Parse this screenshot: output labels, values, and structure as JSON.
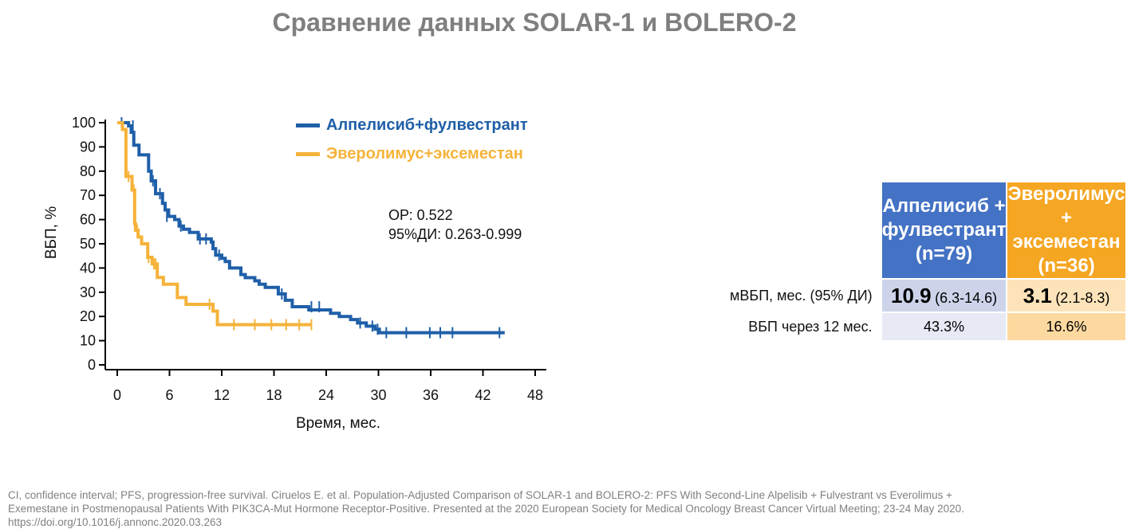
{
  "title": "Сравнение данных SOLAR-1 и BOLERO-2",
  "chart_data": {
    "type": "line",
    "xlabel": "Время, мес.",
    "ylabel": "ВБП, %",
    "xlim": [
      0,
      48
    ],
    "ylim": [
      0,
      100
    ],
    "xticks": [
      0,
      6,
      12,
      18,
      24,
      30,
      36,
      42,
      48
    ],
    "yticks": [
      0,
      10,
      20,
      30,
      40,
      50,
      60,
      70,
      80,
      90,
      100
    ],
    "grid": false,
    "legend_position": "top-right",
    "series": [
      {
        "name": "Алпелисиб+фулвестрант",
        "color": "#1f5fa8",
        "x": [
          0,
          1,
          1.3,
          1.6,
          1.9,
          2.5,
          3.6,
          3.9,
          4.4,
          5.2,
          5.5,
          5.9,
          6.6,
          7.1,
          7.6,
          8.3,
          9.3,
          10.8,
          11,
          11.3,
          12,
          12.4,
          12.9,
          14.2,
          14.7,
          15.8,
          16.3,
          17,
          18.5,
          19.3,
          20.1,
          22,
          24.5,
          25.5,
          26.8,
          27.6,
          28.6,
          29.6,
          30.1,
          30.6,
          44.5
        ],
        "y": [
          100,
          100,
          98.7,
          96,
          90.7,
          86.7,
          80,
          76,
          70.7,
          66.7,
          64,
          61.3,
          60,
          57.3,
          56,
          54.7,
          52,
          50.7,
          48,
          45.3,
          44,
          42.7,
          40,
          37.3,
          36,
          34.7,
          33.3,
          32,
          29.3,
          26.7,
          24,
          22.7,
          21.3,
          20,
          18.7,
          17.3,
          16,
          14.7,
          13.3,
          13.3,
          13.3
        ],
        "censor_x": [
          0.5,
          1.8,
          4.1,
          4.9,
          5.7,
          7.3,
          9.5,
          10.2,
          11.7,
          18.9,
          22.3,
          23.2,
          27.9,
          29.3,
          29.9,
          30.9,
          33.2,
          35.9,
          37.1,
          38.5,
          43.9
        ],
        "censor_y": [
          100,
          98.7,
          76,
          70.7,
          61.3,
          57.3,
          52,
          52,
          45.3,
          29.3,
          24,
          24,
          17.3,
          16,
          14.7,
          13.3,
          13.3,
          13.3,
          13.3,
          13.3,
          13.3
        ]
      },
      {
        "name": "Эверолимус+эксеместан",
        "color": "#f5b33a",
        "x": [
          0,
          0.6,
          1,
          1.7,
          2,
          2.1,
          2.4,
          2.8,
          3.5,
          4,
          4.6,
          5.3,
          6.9,
          7.9,
          11,
          11.5,
          22.3
        ],
        "y": [
          100,
          97.2,
          77.8,
          72.2,
          58.3,
          55.6,
          52.8,
          50,
          44.4,
          41.7,
          36.1,
          33.3,
          27.8,
          25,
          22.2,
          16.6,
          16.6
        ],
        "censor_x": [
          1.3,
          1.9,
          2.3,
          3.6,
          4.2,
          4.4,
          10.6,
          13.4,
          15.8,
          17.7,
          19.4,
          20.9,
          22.3
        ],
        "censor_y": [
          77.8,
          72.2,
          55.6,
          44.4,
          41.7,
          41.7,
          25,
          16.6,
          16.6,
          16.6,
          16.6,
          16.6,
          16.6
        ]
      }
    ],
    "annotations": {
      "hr_label": "ОР: 0.522",
      "ci_label": "95%ДИ: 0.263-0.999"
    }
  },
  "table": {
    "col1_header": [
      "Алпелисиб +",
      "фулвестрант",
      "(n=79)"
    ],
    "col2_header": [
      "Эверолимус +",
      "эксеместан",
      "(n=36)"
    ],
    "rows": [
      {
        "label": "мВБП, мес. (95% ДИ)",
        "v1_main": "10.9",
        "v1_ci": "(6.3-14.6)",
        "v2_main": "3.1",
        "v2_ci": "(2.1-8.3)"
      },
      {
        "label": "ВБП через 12 мес.",
        "v1": "43.3%",
        "v2": "16.6%"
      }
    ],
    "colors": {
      "blue_header": "#4472c4",
      "orange_header": "#f5a623"
    }
  },
  "footnote": [
    "CI, confidence interval; PFS, progression-free survival. Ciruelos E. et al. Population-Adjusted Comparison of SOLAR-1 and BOLERO-2: PFS With Second-Line Alpelisib + Fulvestrant vs Everolimus +",
    "Exemestane in Postmenopausal Patients With PIK3CA-Mut Hormone Receptor-Positive. Presented at the 2020 European Society for Medical Oncology Breast Cancer Virtual Meeting; 23-24 May 2020.",
    "https://doi.org/10.1016/j.annonc.2020.03.263"
  ]
}
